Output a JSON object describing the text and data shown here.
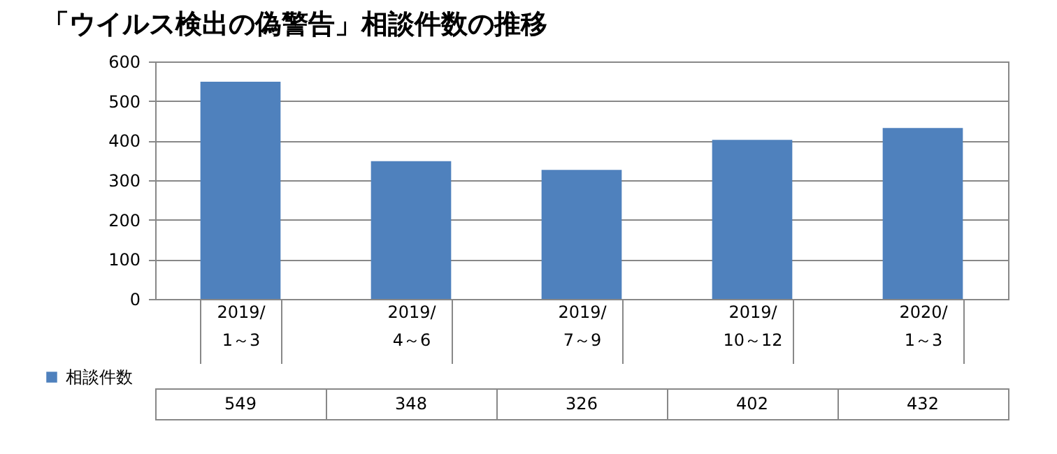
{
  "chart_data": {
    "type": "bar",
    "title": "「ウイルス検出の偽警告」相談件数の推移",
    "categories": [
      "2019/\n1～3",
      "2019/\n4～6",
      "2019/\n7～9",
      "2019/\n10～12",
      "2020/\n1～3"
    ],
    "series": [
      {
        "name": "相談件数",
        "color": "#4f81bd",
        "values": [
          549,
          348,
          326,
          402,
          432
        ]
      }
    ],
    "ylim": [
      0,
      600
    ],
    "yticks": [
      0,
      100,
      200,
      300,
      400,
      500,
      600
    ],
    "grid": "y",
    "legend": "bottom left",
    "data_labels": true
  }
}
